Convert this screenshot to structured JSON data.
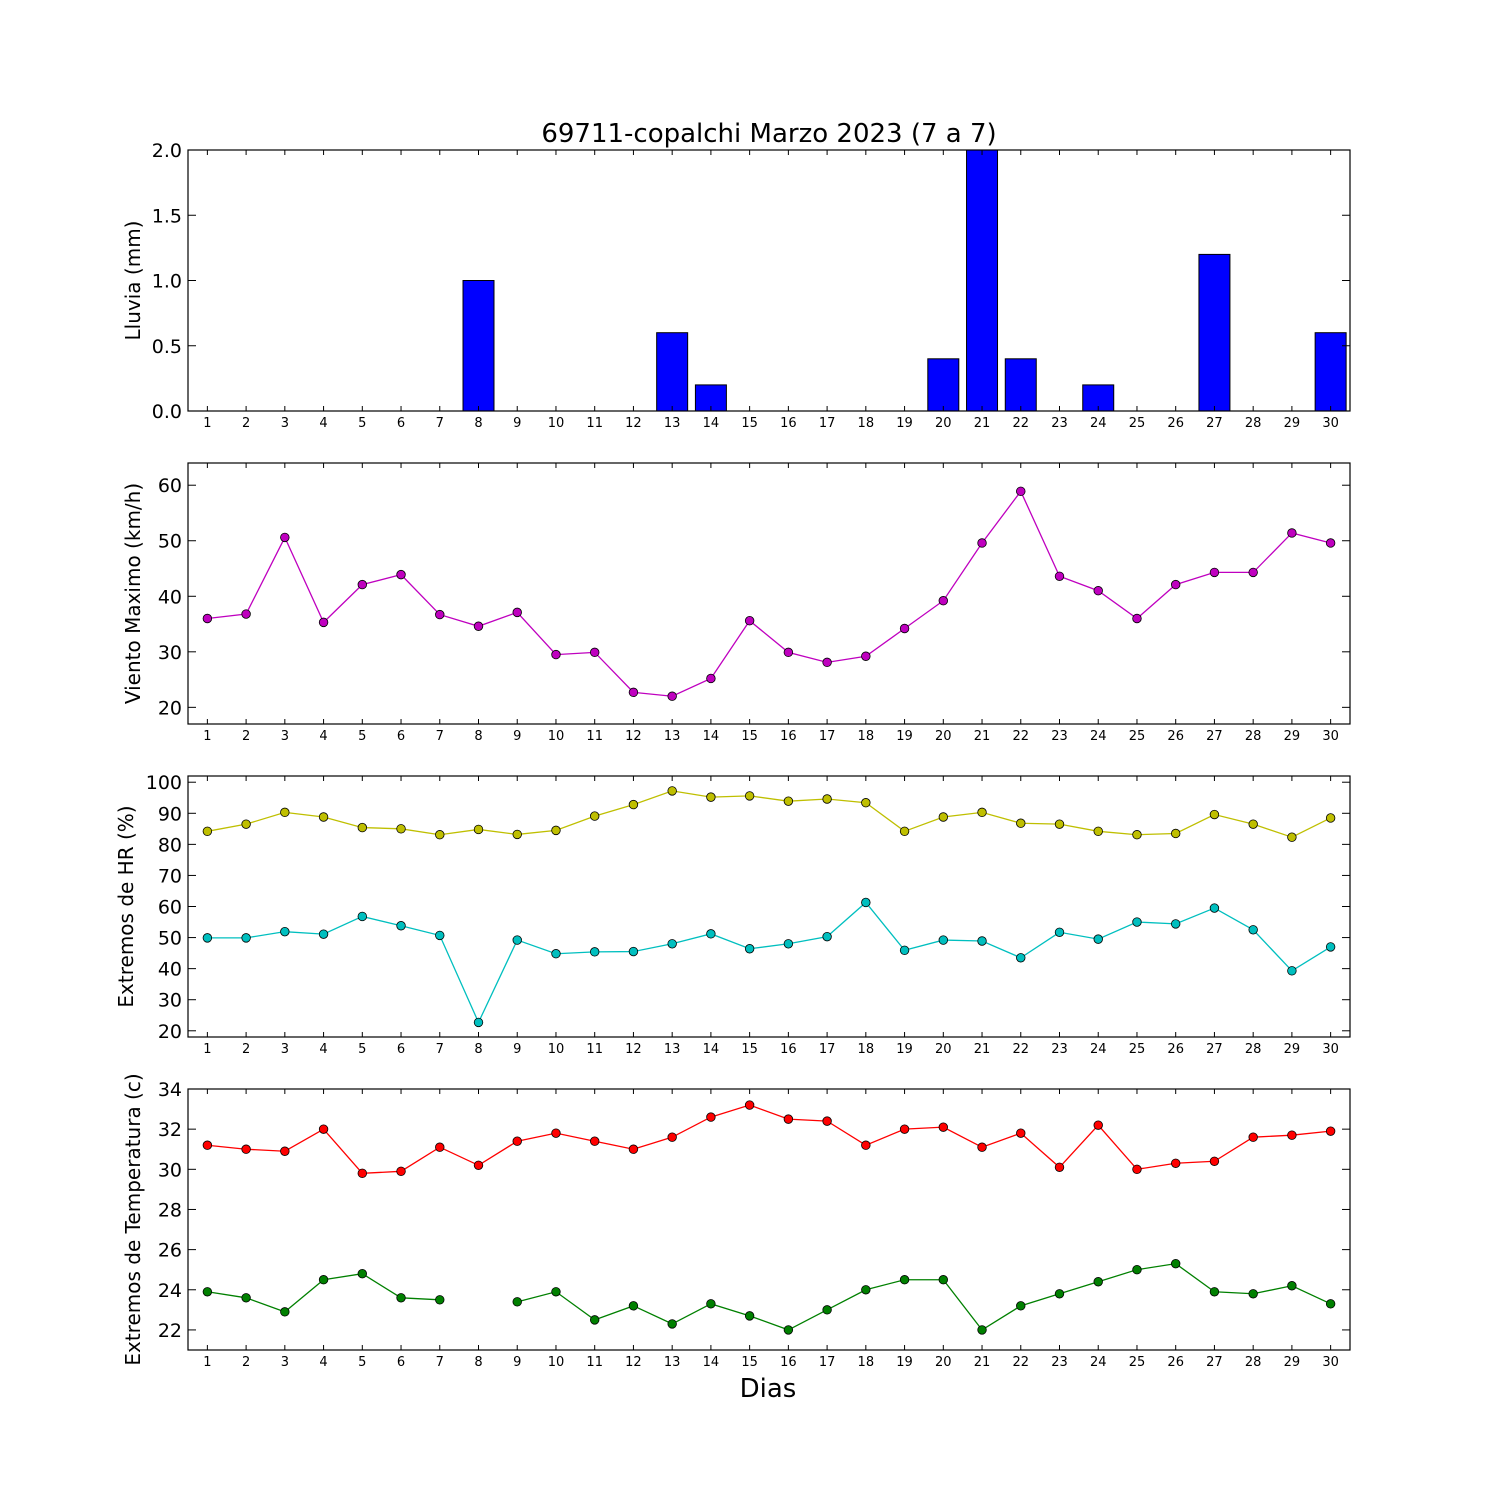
{
  "chart_data": {
    "title": "69711-copalchi Marzo 2023  (7 a 7)",
    "xlabel": "Dias",
    "days": [
      1,
      2,
      3,
      4,
      5,
      6,
      7,
      8,
      9,
      10,
      11,
      12,
      13,
      14,
      15,
      16,
      17,
      18,
      19,
      20,
      21,
      22,
      23,
      24,
      25,
      26,
      27,
      28,
      29,
      30
    ],
    "panels": [
      {
        "id": "lluvia",
        "type": "bar",
        "ylabel": "Lluvia (mm)",
        "ylim": [
          0,
          2.0
        ],
        "yticks": [
          0.0,
          0.5,
          1.0,
          1.5,
          2.0
        ],
        "ytick_labels": [
          "0.0",
          "0.5",
          "1.0",
          "1.5",
          "2.0"
        ],
        "series": [
          {
            "color": "#0000ff",
            "values": [
              0,
              0,
              0,
              0,
              0,
              0,
              0,
              1.0,
              0,
              0,
              0,
              0,
              0.6,
              0.2,
              0,
              0,
              0,
              0,
              0,
              0.4,
              2.0,
              0.4,
              0,
              0.2,
              0,
              0,
              1.2,
              0,
              0,
              0.6
            ]
          }
        ]
      },
      {
        "id": "viento",
        "type": "line",
        "ylabel": "Viento Maximo (km/h)",
        "ylim": [
          17,
          64
        ],
        "yticks": [
          20,
          30,
          40,
          50,
          60
        ],
        "ytick_labels": [
          "20",
          "30",
          "40",
          "50",
          "60"
        ],
        "series": [
          {
            "color": "#bf00bf",
            "values": [
              36.0,
              36.8,
              50.6,
              35.3,
              42.1,
              43.9,
              36.7,
              34.6,
              37.1,
              29.5,
              29.9,
              22.7,
              22.0,
              25.2,
              35.6,
              29.9,
              28.1,
              29.2,
              34.2,
              39.2,
              49.6,
              58.9,
              43.6,
              41.0,
              36.0,
              42.1,
              44.3,
              44.3,
              51.4,
              49.6
            ]
          }
        ]
      },
      {
        "id": "hr",
        "type": "line",
        "ylabel": "Extremos de HR (%)",
        "ylim": [
          18,
          102
        ],
        "yticks": [
          20,
          30,
          40,
          50,
          60,
          70,
          80,
          90,
          100
        ],
        "ytick_labels": [
          "20",
          "30",
          "40",
          "50",
          "60",
          "70",
          "80",
          "90",
          "100"
        ],
        "series": [
          {
            "color": "#bfbf00",
            "values": [
              84.2,
              86.5,
              90.3,
              88.8,
              85.4,
              85.0,
              83.1,
              84.8,
              83.2,
              84.5,
              89.1,
              92.8,
              97.2,
              95.2,
              95.6,
              93.9,
              94.6,
              93.4,
              84.2,
              88.8,
              90.3,
              86.8,
              86.5,
              84.2,
              83.1,
              83.5,
              89.6,
              86.5,
              82.3,
              88.5
            ]
          },
          {
            "color": "#00bfbf",
            "values": [
              49.9,
              49.9,
              51.9,
              51.1,
              56.8,
              53.8,
              50.7,
              22.7,
              49.2,
              44.8,
              45.4,
              45.5,
              48.0,
              51.2,
              46.4,
              48.0,
              50.3,
              61.3,
              45.9,
              49.2,
              48.9,
              43.5,
              51.7,
              49.5,
              55.0,
              54.4,
              59.5,
              52.5,
              39.3,
              47.0
            ]
          }
        ]
      },
      {
        "id": "temperatura",
        "type": "line",
        "ylabel": "Extremos de Temperatura (c)",
        "ylim": [
          21,
          34
        ],
        "yticks": [
          22,
          24,
          26,
          28,
          30,
          32,
          34
        ],
        "ytick_labels": [
          "22",
          "24",
          "26",
          "28",
          "30",
          "32",
          "34"
        ],
        "series": [
          {
            "color": "#ff0000",
            "values": [
              31.2,
              31.0,
              30.9,
              32.0,
              29.8,
              29.9,
              31.1,
              30.2,
              31.4,
              31.8,
              31.4,
              31.0,
              31.6,
              32.6,
              33.2,
              32.5,
              32.4,
              31.2,
              32.0,
              32.1,
              31.1,
              31.8,
              30.1,
              32.2,
              30.0,
              30.3,
              30.4,
              31.6,
              31.7,
              31.9
            ]
          },
          {
            "color": "#008000",
            "values": [
              23.9,
              23.6,
              22.9,
              24.5,
              24.8,
              23.6,
              23.5,
              null,
              23.4,
              23.9,
              22.5,
              23.2,
              22.3,
              23.3,
              22.7,
              22.0,
              23.0,
              24.0,
              24.5,
              24.5,
              22.0,
              23.2,
              23.8,
              24.4,
              25.0,
              25.3,
              23.9,
              23.8,
              24.2,
              23.3
            ]
          }
        ]
      }
    ]
  }
}
